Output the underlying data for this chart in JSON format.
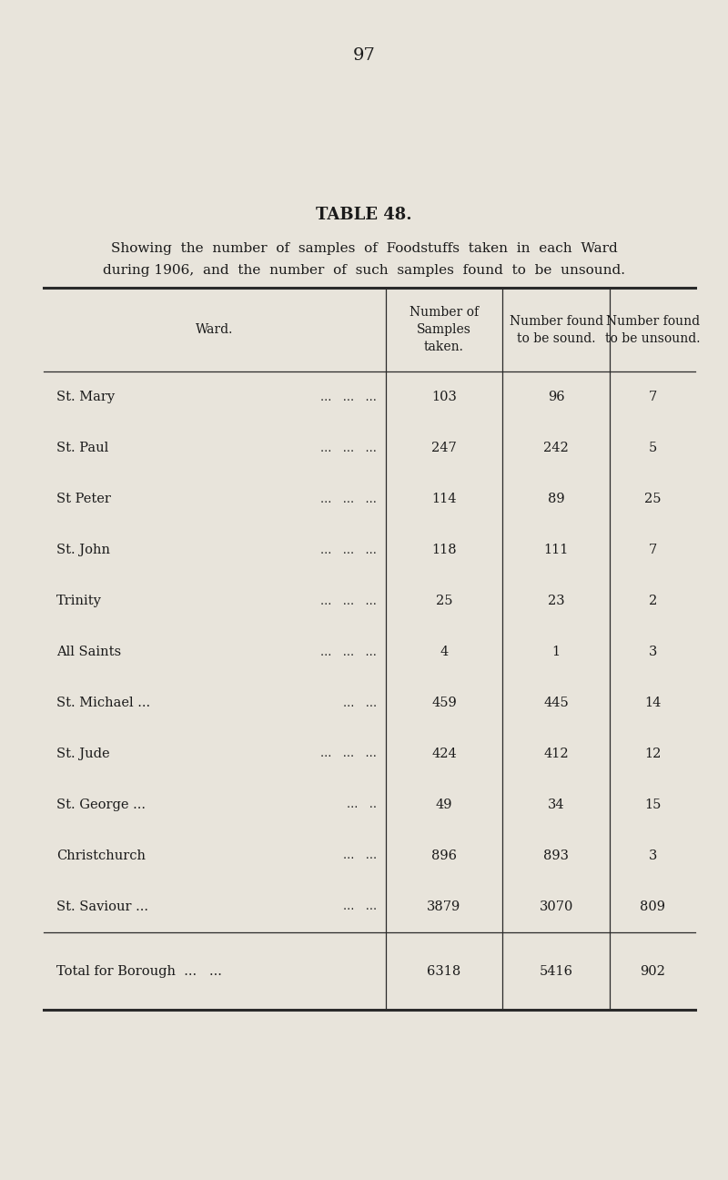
{
  "page_number": "97",
  "title": "TABLE 48.",
  "subtitle_line1": "Showing  the  number  of  samples  of  Foodstuffs  taken  in  each  Ward",
  "subtitle_line2": "during 1906,  and  the  number  of  such  samples  found  to  be  unsound.",
  "col_header0": "Ward.",
  "col_header1": "Number of\nSamples\ntaken.",
  "col_header2": "Number found\nto be sound.",
  "col_header3": "Number found\nto be unsound.",
  "wards": [
    "St. Mary",
    "St. Paul",
    "St Peter",
    "St. John",
    "Trinity",
    "All Saints",
    "St. Michael ...",
    "St. Jude",
    "St. George ...",
    "Christchurch",
    "St. Saviour ..."
  ],
  "ward_dots": [
    "...   ...   ...",
    "...   ...   ...",
    "...   ...   ...",
    "...   ...   ...",
    "...   ...   ...",
    "...   ...   ...",
    "...   ...",
    "...   ...   ...",
    "...   ..",
    "...   ...",
    "...   ..."
  ],
  "samples_taken": [
    103,
    247,
    114,
    118,
    25,
    4,
    459,
    424,
    49,
    896,
    3879
  ],
  "sound": [
    96,
    242,
    89,
    111,
    23,
    1,
    445,
    412,
    34,
    893,
    3070
  ],
  "unsound": [
    7,
    5,
    25,
    7,
    2,
    3,
    14,
    12,
    15,
    3,
    809
  ],
  "total_label": "Total for Borough  ...   ...",
  "total_taken": 6318,
  "total_sound": 5416,
  "total_unsound": 902,
  "bg_color": "#e8e4db",
  "text_color": "#1a1a1a",
  "line_color": "#2a2a2a"
}
